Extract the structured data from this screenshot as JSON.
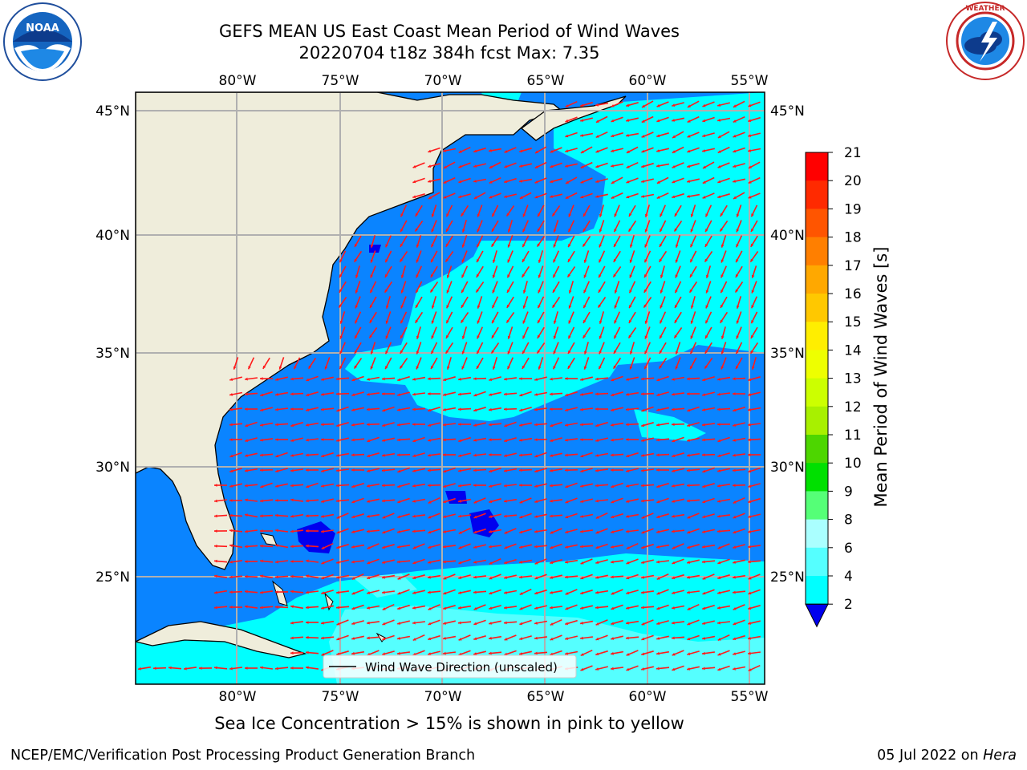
{
  "title": {
    "line1": "GEFS MEAN US East Coast Mean Period of Wind Waves",
    "line2": "20220704 t18z 384h fcst   Max: 7.35"
  },
  "logos": {
    "left": "noaa-logo",
    "right": "national-weather-service-logo"
  },
  "map": {
    "lon_ticks": [
      "80°W",
      "75°W",
      "70°W",
      "65°W",
      "60°W",
      "55°W"
    ],
    "lat_ticks": [
      "45°N",
      "40°N",
      "35°N",
      "30°N",
      "25°N"
    ],
    "legend_label": "Wind Wave Direction (unscaled)",
    "colors": {
      "land": "#efeddb",
      "ocean_2_4": "#0a84ff",
      "ocean_4_6": "#00ffff",
      "ocean_6_8": "#55ffff",
      "arrow": "#ff1a1a",
      "grid": "#b0b0b0"
    }
  },
  "colorbar": {
    "label": "Mean Period of Wind Waves [s]",
    "ticks": [
      "21",
      "20",
      "19",
      "18",
      "17",
      "16",
      "15",
      "14",
      "13",
      "12",
      "11",
      "10",
      "9",
      "8",
      "6",
      "4",
      "2"
    ],
    "colors": [
      "#ff0000",
      "#ff2a00",
      "#ff5500",
      "#ff7f00",
      "#ffa800",
      "#ffc800",
      "#ffee00",
      "#eeff00",
      "#ccff00",
      "#a8f000",
      "#4dd600",
      "#00e000",
      "#55ff77",
      "#aaffff",
      "#55ffff",
      "#00ffff",
      "#0a84ff"
    ],
    "under_color": "#0000ee"
  },
  "caption": "Sea Ice Concentration > 15% is shown in pink to yellow",
  "footer": {
    "left": "NCEP/EMC/Verification Post Processing Product Generation Branch",
    "right_date": "05 Jul 2022 on ",
    "right_machine": "Hera"
  }
}
